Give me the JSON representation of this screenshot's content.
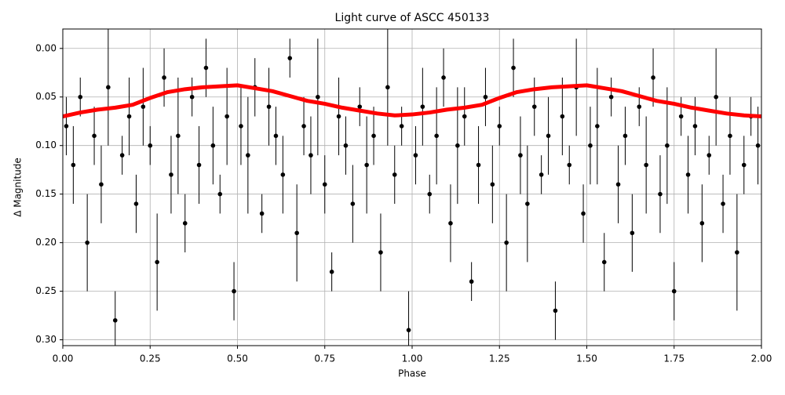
{
  "chart_data": {
    "type": "scatter",
    "title": "Light curve of ASCC 450133",
    "xlabel": "Phase",
    "ylabel": "Δ Magnitude",
    "xlim": [
      0,
      2
    ],
    "ylim": [
      0.306,
      -0.02
    ],
    "grid": true,
    "xticks": [
      {
        "value": 0,
        "label": "0.00"
      },
      0.25,
      {
        "value": 0.5,
        "label": "0.50"
      },
      0.75,
      {
        "value": 1,
        "label": "1.00"
      },
      1.25,
      {
        "value": 1.5,
        "label": "1.50"
      },
      1.75,
      {
        "value": 2,
        "label": "2.00"
      }
    ],
    "yticks": [
      {
        "value": 0,
        "label": "0.00"
      },
      0.05,
      {
        "value": 0.1,
        "label": "0.10"
      },
      0.15,
      {
        "value": 0.2,
        "label": "0.20"
      },
      0.25,
      {
        "value": 0.3,
        "label": "0.30"
      }
    ],
    "series": [
      {
        "type": "errorbar",
        "color": "#000000",
        "x": [
          0.01,
          0.03,
          0.05,
          0.07,
          0.09,
          0.11,
          0.13,
          0.15,
          0.17,
          0.19,
          0.21,
          0.23,
          0.25,
          0.27,
          0.29,
          0.31,
          0.33,
          0.35,
          0.37,
          0.39,
          0.41,
          0.43,
          0.45,
          0.47,
          0.49,
          0.51,
          0.53,
          0.55,
          0.57,
          0.59,
          0.61,
          0.63,
          0.65,
          0.67,
          0.69,
          0.71,
          0.73,
          0.75,
          0.77,
          0.79,
          0.81,
          0.83,
          0.85,
          0.87,
          0.89,
          0.91,
          0.93,
          0.95,
          0.97,
          0.99,
          1.01,
          1.03,
          1.05,
          1.07,
          1.09,
          1.11,
          1.13,
          1.15,
          1.17,
          1.19,
          1.21,
          1.23,
          1.25,
          1.27,
          1.29,
          1.31,
          1.33,
          1.35,
          1.37,
          1.39,
          1.41,
          1.43,
          1.45,
          1.47,
          1.49,
          1.51,
          1.53,
          1.55,
          1.57,
          1.59,
          1.61,
          1.63,
          1.65,
          1.67,
          1.69,
          1.71,
          1.73,
          1.75,
          1.77,
          1.79,
          1.81,
          1.83,
          1.85,
          1.87,
          1.89,
          1.91,
          1.93,
          1.95,
          1.97,
          1.99
        ],
        "values": [
          0.08,
          0.12,
          0.05,
          0.2,
          0.09,
          0.14,
          0.04,
          0.28,
          0.11,
          0.07,
          0.16,
          0.06,
          0.1,
          0.22,
          0.03,
          0.13,
          0.09,
          0.18,
          0.05,
          0.12,
          0.02,
          0.1,
          0.15,
          0.07,
          0.25,
          0.08,
          0.11,
          0.04,
          0.17,
          0.06,
          0.09,
          0.13,
          0.01,
          0.19,
          0.08,
          0.11,
          0.05,
          0.14,
          0.23,
          0.07,
          0.1,
          0.16,
          0.06,
          0.12,
          0.09,
          0.21,
          0.04,
          0.13,
          0.08,
          0.29,
          0.11,
          0.06,
          0.15,
          0.09,
          0.03,
          0.18,
          0.1,
          0.07,
          0.24,
          0.12,
          0.05,
          0.14,
          0.08,
          0.2,
          0.02,
          0.11,
          0.16,
          0.06,
          0.13,
          0.09,
          0.27,
          0.07,
          0.12,
          0.04,
          0.17,
          0.1,
          0.08,
          0.22,
          0.05,
          0.14,
          0.09,
          0.19,
          0.06,
          0.12,
          0.03,
          0.15,
          0.1,
          0.25,
          0.07,
          0.13,
          0.08,
          0.18,
          0.11,
          0.05,
          0.16,
          0.09,
          0.21,
          0.12,
          0.07,
          0.1
        ],
        "errors": [
          0.03,
          0.04,
          0.02,
          0.05,
          0.03,
          0.04,
          0.06,
          0.03,
          0.02,
          0.04,
          0.03,
          0.04,
          0.02,
          0.05,
          0.03,
          0.04,
          0.06,
          0.03,
          0.02,
          0.04,
          0.03,
          0.04,
          0.02,
          0.05,
          0.03,
          0.04,
          0.06,
          0.03,
          0.02,
          0.04,
          0.03,
          0.04,
          0.02,
          0.05,
          0.03,
          0.04,
          0.06,
          0.03,
          0.02,
          0.04,
          0.03,
          0.04,
          0.02,
          0.05,
          0.03,
          0.04,
          0.06,
          0.03,
          0.02,
          0.04,
          0.03,
          0.04,
          0.02,
          0.05,
          0.03,
          0.04,
          0.06,
          0.03,
          0.02,
          0.04,
          0.03,
          0.04,
          0.02,
          0.05,
          0.03,
          0.04,
          0.06,
          0.03,
          0.02,
          0.04,
          0.03,
          0.04,
          0.02,
          0.05,
          0.03,
          0.04,
          0.06,
          0.03,
          0.02,
          0.04,
          0.03,
          0.04,
          0.02,
          0.05,
          0.03,
          0.04,
          0.06,
          0.03,
          0.02,
          0.04,
          0.03,
          0.04,
          0.02,
          0.05,
          0.03,
          0.04,
          0.06,
          0.03,
          0.02,
          0.04
        ]
      },
      {
        "type": "line",
        "color": "#ff0000",
        "x": [
          0,
          0.05,
          0.1,
          0.15,
          0.2,
          0.25,
          0.3,
          0.35,
          0.4,
          0.45,
          0.5,
          0.55,
          0.6,
          0.65,
          0.7,
          0.75,
          0.8,
          0.85,
          0.9,
          0.95,
          1,
          1.05,
          1.1,
          1.15,
          1.2,
          1.25,
          1.3,
          1.35,
          1.4,
          1.45,
          1.5,
          1.55,
          1.6,
          1.65,
          1.7,
          1.75,
          1.8,
          1.85,
          1.9,
          1.95,
          2
        ],
        "values": [
          0.07,
          0.066,
          0.063,
          0.061,
          0.058,
          0.051,
          0.045,
          0.042,
          0.04,
          0.039,
          0.038,
          0.041,
          0.044,
          0.049,
          0.054,
          0.057,
          0.061,
          0.064,
          0.067,
          0.069,
          0.068,
          0.066,
          0.063,
          0.061,
          0.058,
          0.051,
          0.045,
          0.042,
          0.04,
          0.039,
          0.038,
          0.041,
          0.044,
          0.049,
          0.054,
          0.057,
          0.061,
          0.064,
          0.067,
          0.069,
          0.07
        ]
      }
    ]
  }
}
